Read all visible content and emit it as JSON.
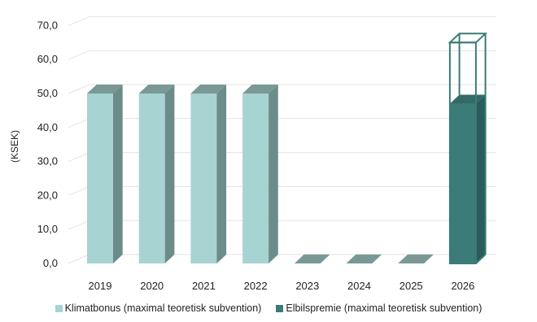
{
  "colors": {
    "klimat_front": "#a8d3d3",
    "klimat_side": "#6c8c8a",
    "klimat_top": "#7a9996",
    "elbil_front": "#3b7b78",
    "elbil_side": "#2a5c59",
    "elbil_top": "#326a67",
    "grid": "#e3e3e3",
    "outline": "#3b7b78"
  },
  "chart_data": {
    "type": "bar",
    "style": "3d-column",
    "ylabel": "(KSEK)",
    "ylim": [
      0,
      70
    ],
    "yticks": [
      "0,0",
      "10,0",
      "20,0",
      "30,0",
      "40,0",
      "50,0",
      "60,0",
      "70,0"
    ],
    "categories": [
      "2019",
      "2020",
      "2021",
      "2022",
      "2023",
      "2024",
      "2025",
      "2026"
    ],
    "series": [
      {
        "name": "Klimatbonus (maximal teoretisk subvention)",
        "values": [
          50,
          50,
          50,
          50,
          0,
          0,
          0,
          0
        ]
      },
      {
        "name": "Elbilspremie (maximal teoretisk subvention)",
        "values": [
          0,
          0,
          0,
          0,
          0,
          0,
          0,
          47
        ]
      }
    ],
    "annotations": [
      {
        "category": "2026",
        "type": "outlined-bar",
        "value": 65
      }
    ],
    "grid": true,
    "legend_position": "bottom"
  }
}
